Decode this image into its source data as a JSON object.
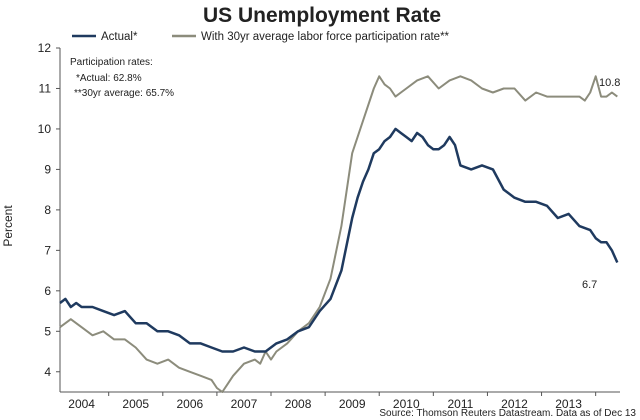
{
  "chart_data": {
    "type": "line",
    "title": "US Unemployment Rate",
    "xlabel": "",
    "ylabel": "Percent",
    "xlim": [
      2003.6,
      2013.95
    ],
    "ylim": [
      3.5,
      12
    ],
    "y_ticks": [
      4,
      5,
      6,
      7,
      8,
      9,
      10,
      11,
      12
    ],
    "x_ticks": [
      "2004",
      "2005",
      "2006",
      "2007",
      "2008",
      "2009",
      "2010",
      "2011",
      "2012",
      "2013"
    ],
    "x_tick_positions": [
      2004,
      2005,
      2006,
      2007,
      2008,
      2009,
      2010,
      2011,
      2012,
      2013
    ],
    "grid": false,
    "legend_position": "top",
    "colors": {
      "actual": "#1f3a5f",
      "average": "#8c8c7c",
      "axis": "#555555"
    },
    "annotations": {
      "participation_title": "Participation rates:",
      "participation_actual": "*Actual: 62.8%",
      "participation_average": "**30yr average: 65.7%",
      "end_label_average": "10.8",
      "end_label_actual": "6.7",
      "source": "Source: Thomson Reuters Datastream. Data as of Dec 13"
    },
    "series": [
      {
        "name": "Actual*",
        "x": [
          2003.6,
          2003.7,
          2003.8,
          2003.9,
          2004.0,
          2004.2,
          2004.4,
          2004.6,
          2004.8,
          2005.0,
          2005.2,
          2005.4,
          2005.6,
          2005.8,
          2006.0,
          2006.2,
          2006.4,
          2006.6,
          2006.8,
          2007.0,
          2007.2,
          2007.4,
          2007.6,
          2007.8,
          2008.0,
          2008.2,
          2008.4,
          2008.6,
          2008.8,
          2009.0,
          2009.1,
          2009.2,
          2009.3,
          2009.4,
          2009.5,
          2009.6,
          2009.7,
          2009.8,
          2009.9,
          2010.0,
          2010.1,
          2010.2,
          2010.3,
          2010.4,
          2010.5,
          2010.6,
          2010.7,
          2010.8,
          2010.9,
          2011.0,
          2011.2,
          2011.4,
          2011.6,
          2011.8,
          2012.0,
          2012.2,
          2012.4,
          2012.6,
          2012.8,
          2013.0,
          2013.2,
          2013.4,
          2013.5,
          2013.6,
          2013.7,
          2013.8,
          2013.9
        ],
        "values": [
          5.7,
          5.8,
          5.6,
          5.7,
          5.6,
          5.6,
          5.5,
          5.4,
          5.5,
          5.2,
          5.2,
          5.0,
          5.0,
          4.9,
          4.7,
          4.7,
          4.6,
          4.5,
          4.5,
          4.6,
          4.5,
          4.5,
          4.7,
          4.8,
          5.0,
          5.1,
          5.5,
          5.8,
          6.5,
          7.8,
          8.3,
          8.7,
          9.0,
          9.4,
          9.5,
          9.7,
          9.8,
          10.0,
          9.9,
          9.8,
          9.7,
          9.9,
          9.8,
          9.6,
          9.5,
          9.5,
          9.6,
          9.8,
          9.6,
          9.1,
          9.0,
          9.1,
          9.0,
          8.5,
          8.3,
          8.2,
          8.2,
          8.1,
          7.8,
          7.9,
          7.6,
          7.5,
          7.3,
          7.2,
          7.2,
          7.0,
          6.7
        ]
      },
      {
        "name": "With 30yr average labor force participation rate**",
        "x": [
          2003.6,
          2003.8,
          2004.0,
          2004.2,
          2004.4,
          2004.6,
          2004.8,
          2005.0,
          2005.2,
          2005.4,
          2005.6,
          2005.8,
          2006.0,
          2006.2,
          2006.4,
          2006.5,
          2006.6,
          2006.7,
          2006.8,
          2007.0,
          2007.2,
          2007.3,
          2007.4,
          2007.5,
          2007.6,
          2007.8,
          2008.0,
          2008.2,
          2008.4,
          2008.6,
          2008.8,
          2009.0,
          2009.2,
          2009.4,
          2009.5,
          2009.6,
          2009.7,
          2009.8,
          2009.9,
          2010.0,
          2010.2,
          2010.4,
          2010.6,
          2010.8,
          2011.0,
          2011.2,
          2011.4,
          2011.6,
          2011.8,
          2012.0,
          2012.2,
          2012.4,
          2012.6,
          2012.8,
          2013.0,
          2013.2,
          2013.3,
          2013.4,
          2013.5,
          2013.6,
          2013.7,
          2013.8,
          2013.9
        ],
        "values": [
          5.1,
          5.3,
          5.1,
          4.9,
          5.0,
          4.8,
          4.8,
          4.6,
          4.3,
          4.2,
          4.3,
          4.1,
          4.0,
          3.9,
          3.8,
          3.6,
          3.5,
          3.7,
          3.9,
          4.2,
          4.3,
          4.2,
          4.5,
          4.3,
          4.5,
          4.7,
          5.0,
          5.2,
          5.6,
          6.3,
          7.6,
          9.4,
          10.2,
          11.0,
          11.3,
          11.1,
          11.0,
          10.8,
          10.9,
          11.0,
          11.2,
          11.3,
          11.0,
          11.2,
          11.3,
          11.2,
          11.0,
          10.9,
          11.0,
          11.0,
          10.7,
          10.9,
          10.8,
          10.8,
          10.8,
          10.8,
          10.7,
          10.9,
          11.3,
          10.8,
          10.8,
          10.9,
          10.8
        ]
      }
    ]
  }
}
